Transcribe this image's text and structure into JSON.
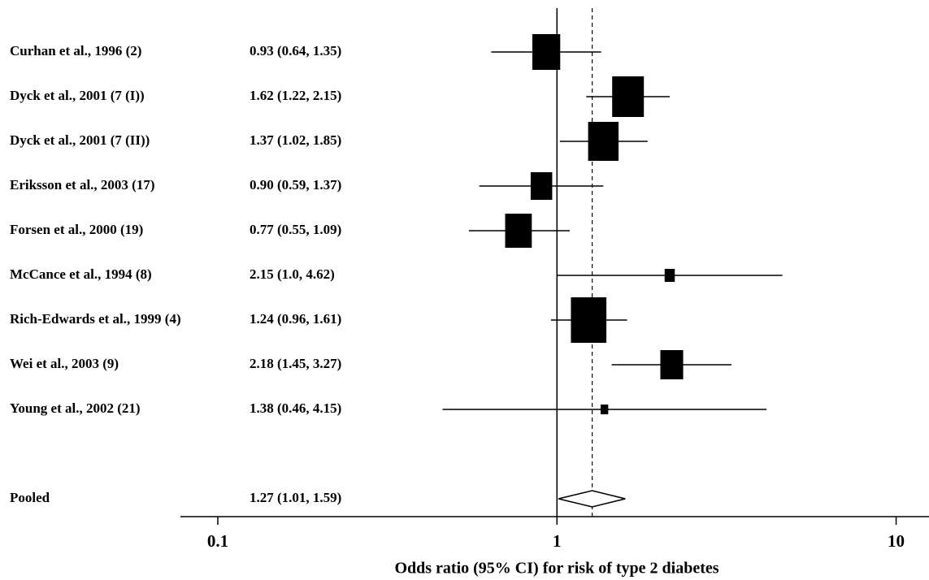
{
  "chart_data": {
    "type": "forest",
    "x_label": "Odds ratio (95% CI) for risk of type 2 diabetes",
    "studies": [
      "Curhan et al., 1996 (2)",
      "Dyck et al., 2001 (7 (I))",
      "Dyck et al., 2001 (7 (II))",
      "Eriksson et al., 2003 (17)",
      "Forsen et al., 2000 (19)",
      "McCance et al., 1994 (8)",
      "Rich-Edwards et al., 1999 (4)",
      "Wei et al., 2003 (9)",
      "Young et al., 2002 (21)"
    ],
    "ci_labels": [
      "0.93 (0.64, 1.35)",
      "1.62 (1.22, 2.15)",
      "1.37 (1.02, 1.85)",
      "0.90 (0.59, 1.37)",
      "0.77 (0.55, 1.09)",
      "2.15 (1.0, 4.62)",
      "1.24 (0.96, 1.61)",
      "2.18 (1.45, 3.27)",
      "1.38 (0.46, 4.15)"
    ],
    "estimates": [
      0.93,
      1.62,
      1.37,
      0.9,
      0.77,
      2.15,
      1.24,
      2.18,
      1.38
    ],
    "lower": [
      0.64,
      1.22,
      1.02,
      0.59,
      0.55,
      1.0,
      0.96,
      1.45,
      0.46
    ],
    "upper": [
      1.35,
      2.15,
      1.85,
      1.37,
      1.09,
      4.62,
      1.61,
      3.27,
      4.15
    ],
    "weights": [
      44,
      50,
      48,
      34,
      42,
      16,
      56,
      36,
      12
    ],
    "pooled": {
      "label": "Pooled",
      "ci_label": "1.27 (1.01, 1.59)",
      "estimate": 1.27,
      "lower": 1.01,
      "upper": 1.59
    },
    "reference": 1,
    "log_x": true,
    "xlim": [
      0.0776,
      12.5
    ],
    "xticks": [
      0.1,
      1,
      10
    ],
    "color": "#000000"
  }
}
